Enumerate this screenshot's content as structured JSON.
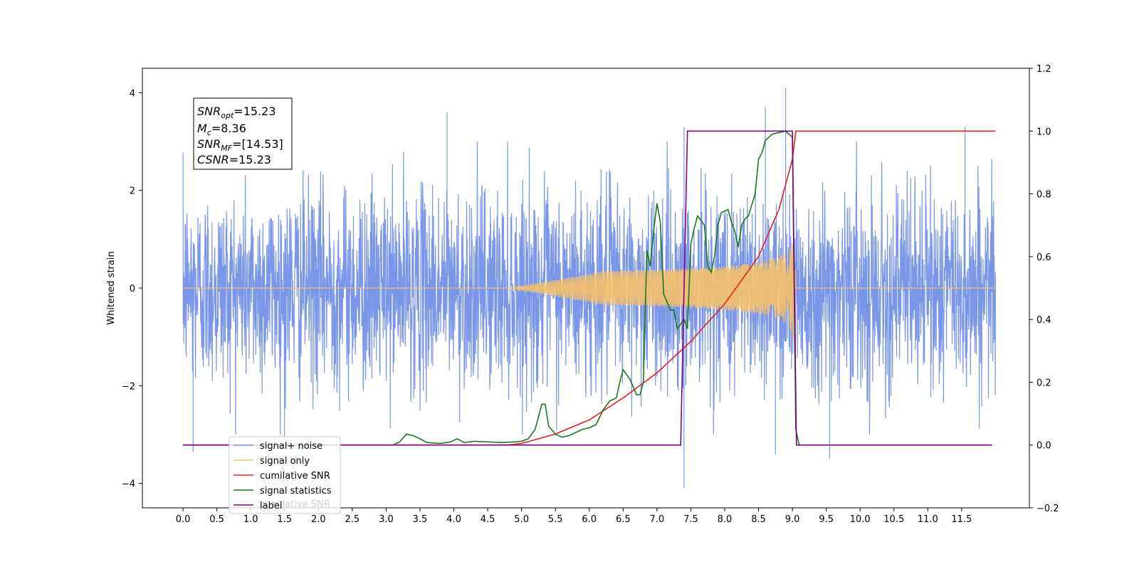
{
  "chart_data": {
    "type": "line",
    "ylabel_left": "Whitened strain",
    "ylim_left": [
      -4.5,
      4.5
    ],
    "yticks_left": [
      -4,
      -2,
      0,
      2,
      4
    ],
    "ylim_right": [
      -0.2,
      1.2
    ],
    "yticks_right": [
      -0.2,
      0.0,
      0.2,
      0.4,
      0.6,
      0.8,
      1.0,
      1.2
    ],
    "xlim": [
      -0.6,
      12.5
    ],
    "xticks": [
      0.0,
      0.5,
      1.0,
      1.5,
      2.0,
      2.5,
      3.0,
      3.5,
      4.0,
      4.5,
      5.0,
      5.5,
      6.0,
      6.5,
      7.0,
      7.5,
      8.0,
      8.5,
      9.0,
      9.5,
      10.0,
      10.5,
      11.0,
      11.5
    ],
    "xtick_labels": [
      "0.0",
      "0.5",
      "1.0",
      "1.5",
      "2.0",
      "2.5",
      "3.0",
      "3.5",
      "4.0",
      "4.5",
      "5.0",
      "5.5",
      "6.0",
      "6.5",
      "7.0",
      "7.5",
      "8.0",
      "8.5",
      "9.0",
      "9.5",
      "10.0",
      "10.5",
      "11.0",
      "11.5"
    ],
    "x_range_series": [
      0.0,
      12.0
    ],
    "series": [
      {
        "name": "signal+ noise",
        "color": "#7a96e8",
        "axis": "left",
        "noise_amplitude": 1.0,
        "spikes": [
          [
            0.15,
            -3.35
          ],
          [
            7.4,
            -4.1
          ],
          [
            7.4,
            3.3
          ],
          [
            8.9,
            4.1
          ],
          [
            8.6,
            3.7
          ],
          [
            3.9,
            3.6
          ],
          [
            11.55,
            3.3
          ],
          [
            9.55,
            -3.5
          ],
          [
            8.75,
            -3.4
          ],
          [
            1.5,
            -3.1
          ]
        ]
      },
      {
        "name": "signal only",
        "color": "#f5c06a",
        "axis": "left",
        "chirp_start": 4.8,
        "chirp_end": 9.05,
        "chirp_peak_amplitude": 1.1
      },
      {
        "name": "cumilative SNR",
        "color": "#e8211e",
        "axis": "right",
        "points": [
          [
            0.0,
            0.0
          ],
          [
            4.8,
            0.0
          ],
          [
            5.0,
            0.005
          ],
          [
            5.5,
            0.035
          ],
          [
            6.0,
            0.08
          ],
          [
            6.5,
            0.15
          ],
          [
            7.0,
            0.23
          ],
          [
            7.5,
            0.33
          ],
          [
            8.0,
            0.45
          ],
          [
            8.5,
            0.6
          ],
          [
            8.8,
            0.75
          ],
          [
            9.0,
            0.91
          ],
          [
            9.05,
            1.0
          ],
          [
            12.0,
            1.0
          ]
        ]
      },
      {
        "name": "signal statistics",
        "color": "#1a7a1a",
        "axis": "right",
        "points": [
          [
            3.1,
            0.0
          ],
          [
            3.2,
            0.01
          ],
          [
            3.3,
            0.035
          ],
          [
            3.4,
            0.03
          ],
          [
            3.5,
            0.02
          ],
          [
            3.6,
            0.008
          ],
          [
            3.8,
            0.005
          ],
          [
            3.95,
            0.01
          ],
          [
            4.05,
            0.02
          ],
          [
            4.15,
            0.008
          ],
          [
            4.3,
            0.012
          ],
          [
            4.5,
            0.01
          ],
          [
            4.7,
            0.008
          ],
          [
            4.9,
            0.01
          ],
          [
            5.0,
            0.012
          ],
          [
            5.1,
            0.02
          ],
          [
            5.2,
            0.05
          ],
          [
            5.3,
            0.13
          ],
          [
            5.35,
            0.13
          ],
          [
            5.4,
            0.06
          ],
          [
            5.5,
            0.035
          ],
          [
            5.6,
            0.025
          ],
          [
            5.7,
            0.03
          ],
          [
            5.8,
            0.04
          ],
          [
            5.9,
            0.05
          ],
          [
            6.0,
            0.055
          ],
          [
            6.1,
            0.065
          ],
          [
            6.2,
            0.11
          ],
          [
            6.3,
            0.14
          ],
          [
            6.4,
            0.15
          ],
          [
            6.45,
            0.2
          ],
          [
            6.5,
            0.24
          ],
          [
            6.6,
            0.21
          ],
          [
            6.7,
            0.16
          ],
          [
            6.75,
            0.16
          ],
          [
            6.8,
            0.2
          ],
          [
            6.85,
            0.62
          ],
          [
            6.9,
            0.57
          ],
          [
            6.95,
            0.68
          ],
          [
            7.0,
            0.77
          ],
          [
            7.05,
            0.71
          ],
          [
            7.1,
            0.48
          ],
          [
            7.2,
            0.43
          ],
          [
            7.25,
            0.43
          ],
          [
            7.3,
            0.37
          ],
          [
            7.4,
            0.4
          ],
          [
            7.45,
            0.37
          ],
          [
            7.5,
            0.64
          ],
          [
            7.55,
            0.69
          ],
          [
            7.6,
            0.73
          ],
          [
            7.7,
            0.7
          ],
          [
            7.75,
            0.57
          ],
          [
            7.8,
            0.55
          ],
          [
            7.85,
            0.6
          ],
          [
            7.9,
            0.7
          ],
          [
            7.95,
            0.74
          ],
          [
            8.05,
            0.75
          ],
          [
            8.1,
            0.71
          ],
          [
            8.15,
            0.68
          ],
          [
            8.2,
            0.63
          ],
          [
            8.25,
            0.7
          ],
          [
            8.3,
            0.72
          ],
          [
            8.35,
            0.73
          ],
          [
            8.45,
            0.8
          ],
          [
            8.5,
            0.91
          ],
          [
            8.55,
            0.93
          ],
          [
            8.6,
            0.97
          ],
          [
            8.7,
            0.99
          ],
          [
            8.9,
            1.0
          ],
          [
            9.0,
            0.98
          ],
          [
            9.05,
            0.05
          ],
          [
            9.1,
            0.0
          ]
        ]
      },
      {
        "name": "label",
        "color": "#800080",
        "axis": "right",
        "points": [
          [
            0.0,
            0.0
          ],
          [
            7.35,
            0.0
          ],
          [
            7.45,
            1.0
          ],
          [
            9.0,
            1.0
          ],
          [
            9.06,
            0.0
          ],
          [
            11.95,
            0.0
          ]
        ]
      }
    ],
    "legend_placement": "lower-left",
    "legend_ghost_text": "cumilative SNR"
  },
  "info_box": {
    "snr_opt_var": "SNR",
    "snr_opt_sub": "opt",
    "snr_opt_val": "=15.23",
    "mc_var": "M",
    "mc_sub": "c",
    "mc_val": "=8.36",
    "snr_mf_var": "SNR",
    "snr_mf_sub": "MF",
    "snr_mf_val": "=[14.53]",
    "csnr_var": "CSNR",
    "csnr_val": "=15.23"
  }
}
